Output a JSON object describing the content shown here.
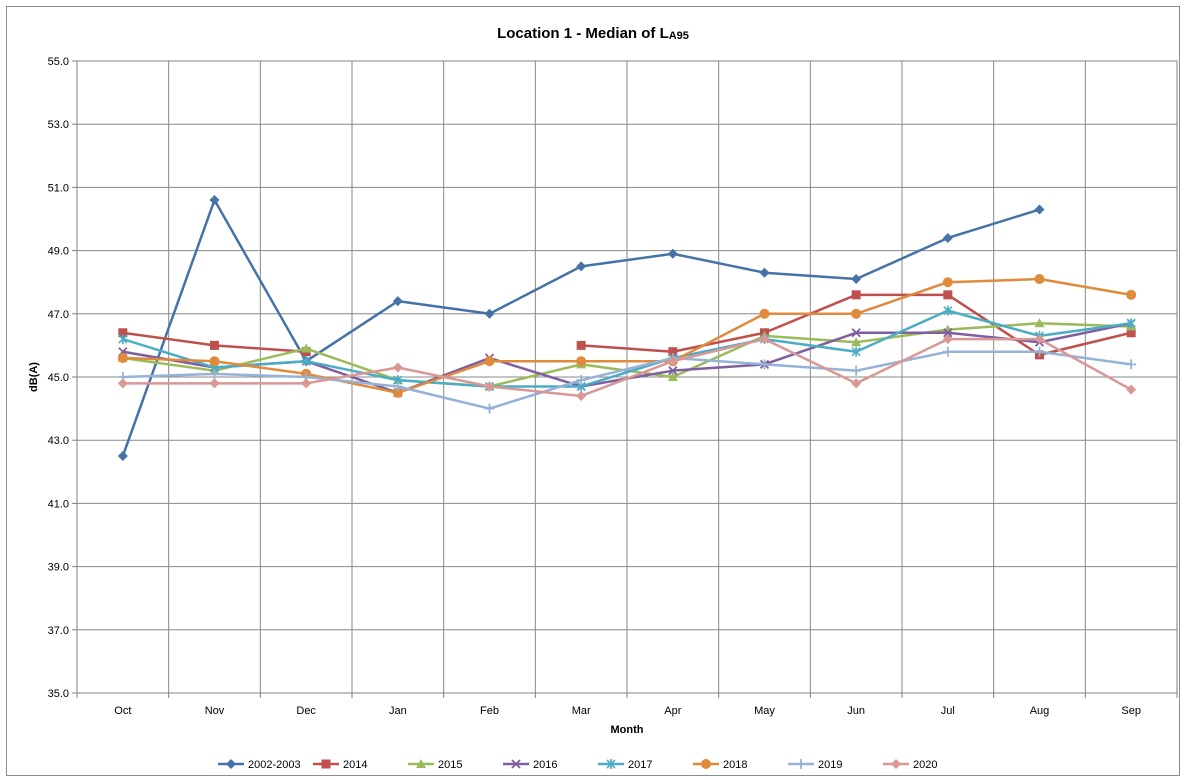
{
  "chart_data": {
    "type": "line",
    "title": "Location 1 - Median of L",
    "title_subscript": "A95",
    "xlabel": "Month",
    "ylabel": "dB(A)",
    "ylim": [
      35.0,
      55.0
    ],
    "yticks": [
      "35.0",
      "37.0",
      "39.0",
      "41.0",
      "43.0",
      "45.0",
      "47.0",
      "49.0",
      "51.0",
      "53.0",
      "55.0"
    ],
    "categories": [
      "Oct",
      "Nov",
      "Dec",
      "Jan",
      "Feb",
      "Mar",
      "Apr",
      "May",
      "Jun",
      "Jul",
      "Aug",
      "Sep"
    ],
    "grid": true,
    "legend_position": "bottom",
    "series": [
      {
        "name": "2002-2003",
        "color": "#4572a7",
        "marker": "diamond",
        "values": [
          42.5,
          50.6,
          45.5,
          47.4,
          47.0,
          48.5,
          48.9,
          48.3,
          48.1,
          49.4,
          50.3,
          null
        ]
      },
      {
        "name": "2014",
        "color": "#c0504d",
        "marker": "square",
        "values": [
          46.4,
          46.0,
          45.8,
          null,
          null,
          46.0,
          45.8,
          46.4,
          47.6,
          47.6,
          45.7,
          46.4
        ]
      },
      {
        "name": "2015",
        "color": "#9bbb59",
        "marker": "triangle",
        "values": [
          45.6,
          45.2,
          45.9,
          44.9,
          44.7,
          45.4,
          45.0,
          46.3,
          46.1,
          46.5,
          46.7,
          46.6
        ]
      },
      {
        "name": "2016",
        "color": "#7f5f9f",
        "marker": "x",
        "values": [
          45.8,
          45.3,
          45.5,
          44.5,
          45.6,
          44.7,
          45.2,
          45.4,
          46.4,
          46.4,
          46.1,
          46.7
        ]
      },
      {
        "name": "2017",
        "color": "#4bacc6",
        "marker": "star",
        "values": [
          46.2,
          45.3,
          45.5,
          44.9,
          44.7,
          44.7,
          45.6,
          46.2,
          45.8,
          47.1,
          46.3,
          46.7
        ]
      },
      {
        "name": "2018",
        "color": "#e08a3c",
        "marker": "circle",
        "values": [
          45.6,
          45.5,
          45.1,
          44.5,
          45.5,
          45.5,
          45.5,
          47.0,
          47.0,
          48.0,
          48.1,
          47.6
        ]
      },
      {
        "name": "2019",
        "color": "#95b3d7",
        "marker": "plus",
        "values": [
          45.0,
          45.1,
          45.0,
          44.7,
          44.0,
          44.9,
          45.6,
          45.4,
          45.2,
          45.8,
          45.8,
          45.4
        ]
      },
      {
        "name": "2020",
        "color": "#d99795",
        "marker": "diamond",
        "values": [
          44.8,
          44.8,
          44.8,
          45.3,
          44.7,
          44.4,
          45.5,
          46.2,
          44.8,
          46.2,
          46.2,
          44.6
        ]
      }
    ]
  }
}
